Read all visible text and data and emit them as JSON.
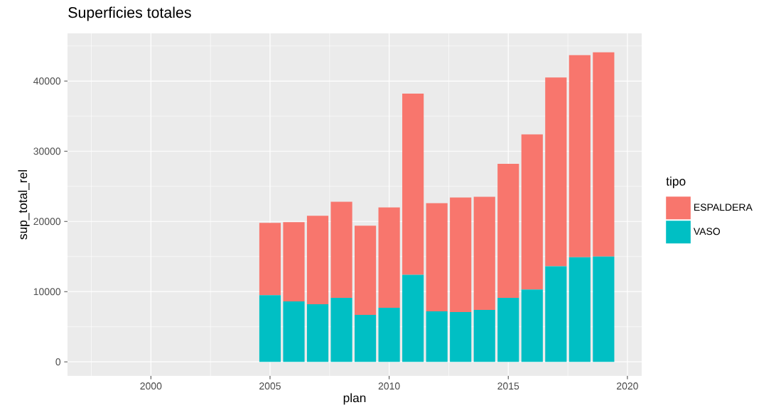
{
  "chart_data": {
    "type": "bar",
    "stacked": true,
    "title": "Superficies totales",
    "xlabel": "plan",
    "ylabel": "sup_total_rel",
    "legend_title": "tipo",
    "legend": "right",
    "grid": true,
    "x": [
      2005,
      2006,
      2007,
      2008,
      2009,
      2010,
      2011,
      2012,
      2013,
      2014,
      2015,
      2016,
      2017,
      2018,
      2019
    ],
    "series": [
      {
        "name": "VASO",
        "color": "#00bfc4",
        "values": [
          9500,
          8600,
          8200,
          9100,
          6700,
          7700,
          12400,
          7200,
          7100,
          7400,
          9100,
          10300,
          13600,
          14900,
          15000
        ]
      },
      {
        "name": "ESPALDERA",
        "color": "#f8766d",
        "values": [
          10300,
          11300,
          12600,
          13700,
          12700,
          14300,
          25800,
          15400,
          16300,
          16100,
          19100,
          22100,
          26900,
          28800,
          29100
        ]
      }
    ],
    "xlim": [
      1996.5,
      2020.6
    ],
    "ylim": [
      -2000,
      46800
    ],
    "xticks": [
      2000,
      2005,
      2010,
      2015,
      2020
    ],
    "yticks": [
      0,
      10000,
      20000,
      30000,
      40000
    ]
  }
}
